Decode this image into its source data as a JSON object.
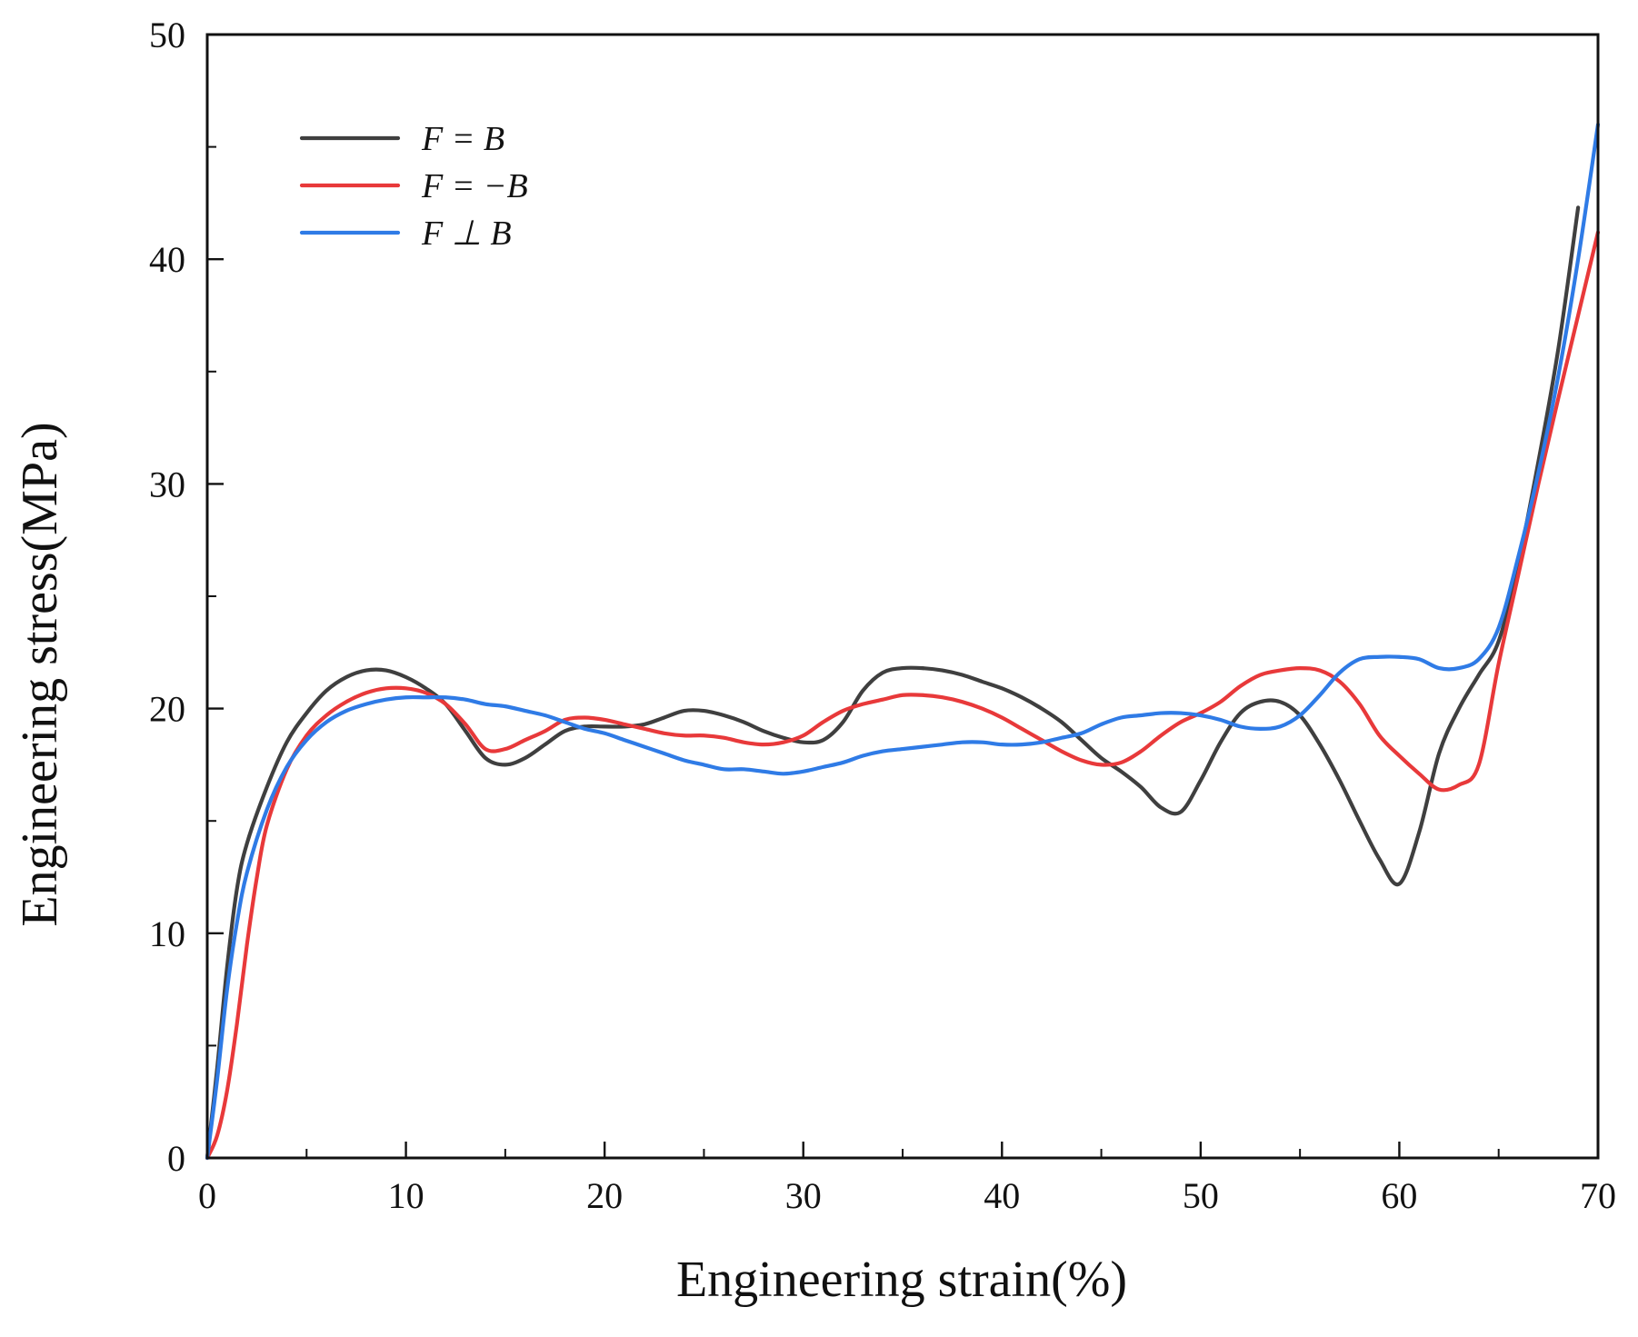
{
  "chart_data": {
    "type": "line",
    "title": "",
    "xlabel": "Engineering strain(%)",
    "ylabel": "Engineering stress(MPa)",
    "xlim": [
      0,
      70
    ],
    "ylim": [
      0,
      50
    ],
    "x_ticks": [
      0,
      10,
      20,
      30,
      40,
      50,
      60,
      70
    ],
    "y_ticks": [
      0,
      10,
      20,
      30,
      40,
      50
    ],
    "grid": false,
    "legend_position": "top-left",
    "series": [
      {
        "name": "F = B",
        "label_text": "F = B",
        "color": "#3f3f3f",
        "points": [
          [
            0,
            0
          ],
          [
            0.5,
            4
          ],
          [
            1,
            8.5
          ],
          [
            1.5,
            12
          ],
          [
            2,
            14
          ],
          [
            3,
            16.5
          ],
          [
            4,
            18.5
          ],
          [
            5,
            19.8
          ],
          [
            6,
            20.8
          ],
          [
            7,
            21.4
          ],
          [
            8,
            21.7
          ],
          [
            9,
            21.7
          ],
          [
            10,
            21.4
          ],
          [
            11,
            20.9
          ],
          [
            12,
            20.2
          ],
          [
            13,
            19.0
          ],
          [
            14,
            17.8
          ],
          [
            15,
            17.5
          ],
          [
            16,
            17.8
          ],
          [
            17,
            18.4
          ],
          [
            18,
            19.0
          ],
          [
            19,
            19.2
          ],
          [
            20,
            19.2
          ],
          [
            21,
            19.2
          ],
          [
            22,
            19.3
          ],
          [
            23,
            19.6
          ],
          [
            24,
            19.9
          ],
          [
            25,
            19.9
          ],
          [
            26,
            19.7
          ],
          [
            27,
            19.4
          ],
          [
            28,
            19.0
          ],
          [
            29,
            18.7
          ],
          [
            30,
            18.5
          ],
          [
            31,
            18.6
          ],
          [
            32,
            19.4
          ],
          [
            33,
            20.8
          ],
          [
            34,
            21.6
          ],
          [
            35,
            21.8
          ],
          [
            36,
            21.8
          ],
          [
            37,
            21.7
          ],
          [
            38,
            21.5
          ],
          [
            39,
            21.2
          ],
          [
            40,
            20.9
          ],
          [
            41,
            20.5
          ],
          [
            42,
            20.0
          ],
          [
            43,
            19.4
          ],
          [
            44,
            18.6
          ],
          [
            45,
            17.8
          ],
          [
            46,
            17.2
          ],
          [
            47,
            16.5
          ],
          [
            48,
            15.6
          ],
          [
            49,
            15.4
          ],
          [
            50,
            16.8
          ],
          [
            51,
            18.5
          ],
          [
            52,
            19.8
          ],
          [
            53,
            20.3
          ],
          [
            54,
            20.3
          ],
          [
            55,
            19.7
          ],
          [
            56,
            18.4
          ],
          [
            57,
            16.8
          ],
          [
            58,
            15.0
          ],
          [
            59,
            13.3
          ],
          [
            60,
            12.2
          ],
          [
            61,
            14.5
          ],
          [
            62,
            18.0
          ],
          [
            63,
            20.0
          ],
          [
            64,
            21.5
          ],
          [
            65,
            23.0
          ],
          [
            66,
            26.5
          ],
          [
            67,
            31.0
          ],
          [
            68,
            36.0
          ],
          [
            69,
            42.3
          ]
        ]
      },
      {
        "name": "F = -B",
        "label_text": "F = −B",
        "color": "#e8393a",
        "points": [
          [
            0,
            0
          ],
          [
            0.5,
            1
          ],
          [
            1,
            3
          ],
          [
            1.5,
            6
          ],
          [
            2,
            9.5
          ],
          [
            2.5,
            12.5
          ],
          [
            3,
            14.8
          ],
          [
            4,
            17.3
          ],
          [
            5,
            18.8
          ],
          [
            6,
            19.7
          ],
          [
            7,
            20.3
          ],
          [
            8,
            20.7
          ],
          [
            9,
            20.9
          ],
          [
            10,
            20.9
          ],
          [
            11,
            20.7
          ],
          [
            12,
            20.2
          ],
          [
            13,
            19.3
          ],
          [
            14,
            18.2
          ],
          [
            15,
            18.2
          ],
          [
            16,
            18.6
          ],
          [
            17,
            19.0
          ],
          [
            18,
            19.5
          ],
          [
            19,
            19.6
          ],
          [
            20,
            19.5
          ],
          [
            21,
            19.3
          ],
          [
            22,
            19.1
          ],
          [
            23,
            18.9
          ],
          [
            24,
            18.8
          ],
          [
            25,
            18.8
          ],
          [
            26,
            18.7
          ],
          [
            27,
            18.5
          ],
          [
            28,
            18.4
          ],
          [
            29,
            18.5
          ],
          [
            30,
            18.8
          ],
          [
            31,
            19.4
          ],
          [
            32,
            19.9
          ],
          [
            33,
            20.2
          ],
          [
            34,
            20.4
          ],
          [
            35,
            20.6
          ],
          [
            36,
            20.6
          ],
          [
            37,
            20.5
          ],
          [
            38,
            20.3
          ],
          [
            39,
            20.0
          ],
          [
            40,
            19.6
          ],
          [
            41,
            19.1
          ],
          [
            42,
            18.6
          ],
          [
            43,
            18.1
          ],
          [
            44,
            17.7
          ],
          [
            45,
            17.5
          ],
          [
            46,
            17.6
          ],
          [
            47,
            18.1
          ],
          [
            48,
            18.8
          ],
          [
            49,
            19.4
          ],
          [
            50,
            19.8
          ],
          [
            51,
            20.3
          ],
          [
            52,
            21.0
          ],
          [
            53,
            21.5
          ],
          [
            54,
            21.7
          ],
          [
            55,
            21.8
          ],
          [
            56,
            21.7
          ],
          [
            57,
            21.2
          ],
          [
            58,
            20.2
          ],
          [
            59,
            18.8
          ],
          [
            60,
            17.9
          ],
          [
            61,
            17.1
          ],
          [
            62,
            16.4
          ],
          [
            63,
            16.6
          ],
          [
            64,
            17.5
          ],
          [
            65,
            22.0
          ],
          [
            66,
            26.0
          ],
          [
            67,
            30.0
          ],
          [
            68,
            33.8
          ],
          [
            69,
            37.5
          ],
          [
            70,
            41.2
          ]
        ]
      },
      {
        "name": "F ⊥ B",
        "label_text": "F ⊥ B",
        "color": "#2f7be6",
        "points": [
          [
            0,
            0
          ],
          [
            0.5,
            3.5
          ],
          [
            1,
            7.5
          ],
          [
            1.5,
            10.5
          ],
          [
            2,
            12.7
          ],
          [
            3,
            15.5
          ],
          [
            4,
            17.4
          ],
          [
            5,
            18.6
          ],
          [
            6,
            19.4
          ],
          [
            7,
            19.9
          ],
          [
            8,
            20.2
          ],
          [
            9,
            20.4
          ],
          [
            10,
            20.5
          ],
          [
            11,
            20.5
          ],
          [
            12,
            20.5
          ],
          [
            13,
            20.4
          ],
          [
            14,
            20.2
          ],
          [
            15,
            20.1
          ],
          [
            16,
            19.9
          ],
          [
            17,
            19.7
          ],
          [
            18,
            19.4
          ],
          [
            19,
            19.1
          ],
          [
            20,
            18.9
          ],
          [
            21,
            18.6
          ],
          [
            22,
            18.3
          ],
          [
            23,
            18.0
          ],
          [
            24,
            17.7
          ],
          [
            25,
            17.5
          ],
          [
            26,
            17.3
          ],
          [
            27,
            17.3
          ],
          [
            28,
            17.2
          ],
          [
            29,
            17.1
          ],
          [
            30,
            17.2
          ],
          [
            31,
            17.4
          ],
          [
            32,
            17.6
          ],
          [
            33,
            17.9
          ],
          [
            34,
            18.1
          ],
          [
            35,
            18.2
          ],
          [
            36,
            18.3
          ],
          [
            37,
            18.4
          ],
          [
            38,
            18.5
          ],
          [
            39,
            18.5
          ],
          [
            40,
            18.4
          ],
          [
            41,
            18.4
          ],
          [
            42,
            18.5
          ],
          [
            43,
            18.7
          ],
          [
            44,
            18.9
          ],
          [
            45,
            19.3
          ],
          [
            46,
            19.6
          ],
          [
            47,
            19.7
          ],
          [
            48,
            19.8
          ],
          [
            49,
            19.8
          ],
          [
            50,
            19.7
          ],
          [
            51,
            19.5
          ],
          [
            52,
            19.2
          ],
          [
            53,
            19.1
          ],
          [
            54,
            19.2
          ],
          [
            55,
            19.7
          ],
          [
            56,
            20.6
          ],
          [
            57,
            21.6
          ],
          [
            58,
            22.2
          ],
          [
            59,
            22.3
          ],
          [
            60,
            22.3
          ],
          [
            61,
            22.2
          ],
          [
            62,
            21.8
          ],
          [
            63,
            21.8
          ],
          [
            64,
            22.2
          ],
          [
            65,
            23.6
          ],
          [
            66,
            26.8
          ],
          [
            67,
            30.5
          ],
          [
            68,
            34.8
          ],
          [
            69,
            40.0
          ],
          [
            70,
            46.0
          ]
        ]
      }
    ]
  }
}
